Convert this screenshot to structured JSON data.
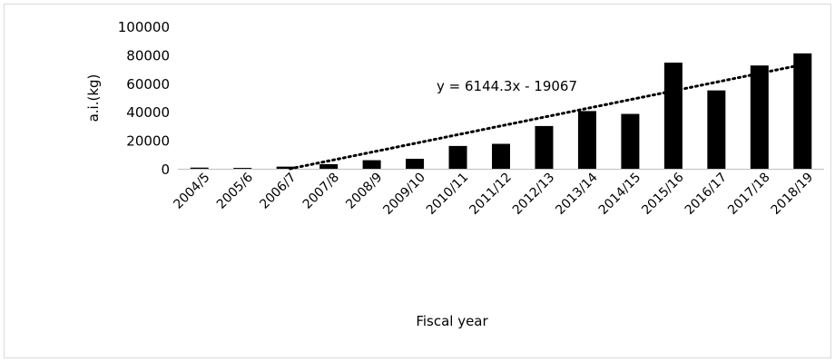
{
  "chart_data": {
    "type": "bar",
    "title": "",
    "xlabel": "Fiscal year",
    "ylabel": "a.i.(kg)",
    "ylim": [
      0,
      100000
    ],
    "yticks": [
      "0",
      "20000",
      "40000",
      "60000",
      "80000",
      "100000"
    ],
    "categories": [
      "2004/5",
      "2005/6",
      "2006/7",
      "2007/8",
      "2008/9",
      "2009/10",
      "2010/11",
      "2011/12",
      "2012/13",
      "2013/14",
      "2014/15",
      "2015/16",
      "2016/17",
      "2017/18",
      "2018/19"
    ],
    "values": [
      800,
      600,
      1500,
      3200,
      6000,
      7000,
      16000,
      17500,
      30000,
      40500,
      38500,
      74500,
      55000,
      72500,
      81000
    ],
    "bar_color": "#000000",
    "grid": false,
    "trendline": {
      "type": "linear",
      "slope": 6144.3,
      "intercept": -19067,
      "label": "y = 6144.3x - 19067",
      "style": "dotted"
    }
  }
}
